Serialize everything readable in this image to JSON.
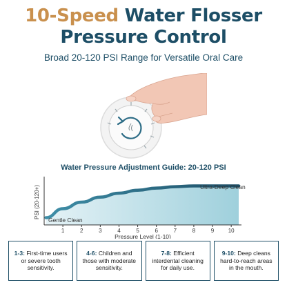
{
  "header": {
    "title_accent": "10-Speed",
    "title_line1_rest": "Water Flosser",
    "title_line2": "Pressure Control",
    "subtitle": "Broad 20-120 PSI Range for Versatile Oral Care"
  },
  "colors": {
    "navy": "#1d4e66",
    "gold": "#c9904d",
    "teal_light": "#9fd0dc"
  },
  "chart_data": {
    "type": "area",
    "title": "Water Pressure Adjustment Guide: 20-120 PSI",
    "xlabel": "Pressure Level (1-10)",
    "ylabel": "PSI (20-120+)",
    "x": [
      1,
      2,
      3,
      4,
      5,
      6,
      7,
      8,
      9,
      10
    ],
    "xlim": [
      0,
      10.4
    ],
    "ylim": [
      0,
      130
    ],
    "series": [
      {
        "values": [
          45,
          63,
          77,
          88,
          96,
          102,
          106,
          108,
          108,
          108
        ]
      }
    ],
    "annotations": [
      {
        "text": "Gentle Clean"
      },
      {
        "text": "Ultra-Deep Clean"
      }
    ],
    "grid": false
  },
  "cards": [
    {
      "range": "1-3:",
      "text": " First-time users or severe tooth sensitivity."
    },
    {
      "range": "4-6:",
      "text": " Children and those with moderate sensitivity."
    },
    {
      "range": "7-8:",
      "text": " Efficient interdental cleaning for daily use."
    },
    {
      "range": "9-10:",
      "text": " Deep cleans hard-to-reach areas in the mouth."
    }
  ]
}
